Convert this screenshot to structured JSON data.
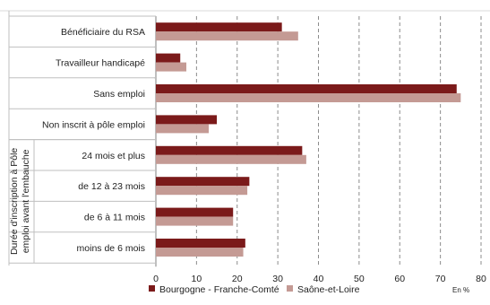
{
  "chart_data": {
    "type": "bar",
    "orientation": "horizontal",
    "title": "",
    "xlabel": "",
    "ylabel": "",
    "unit_label": "En %",
    "xlim": [
      0,
      80
    ],
    "x_ticks": [
      0,
      10,
      20,
      30,
      40,
      50,
      60,
      70,
      80
    ],
    "grid": "vertical dashed",
    "legend_position": "bottom",
    "categories": [
      "Bénéficiaire du RSA",
      "Travailleur handicapé",
      "Sans emploi",
      "Non inscrit à pôle emploi",
      "24 mois et plus",
      "de 12 à 23 mois",
      "de 6 à 11 mois",
      "moins de 6 mois"
    ],
    "group_label": "Durée d'inscription à Pôle emploi avant l'embauche",
    "group_label_lines": [
      "Durée d'inscription à Pôle",
      "emploi avant l'embauche"
    ],
    "series": [
      {
        "name": "Bourgogne - Franche-Comté",
        "color": "#7b1a1a",
        "values": [
          31,
          6,
          74,
          15,
          36,
          23,
          19,
          22
        ]
      },
      {
        "name": "Saône-et-Loire",
        "color": "#c49a94",
        "values": [
          35,
          7.5,
          75,
          13,
          37,
          22.5,
          19,
          21.5
        ]
      }
    ]
  }
}
